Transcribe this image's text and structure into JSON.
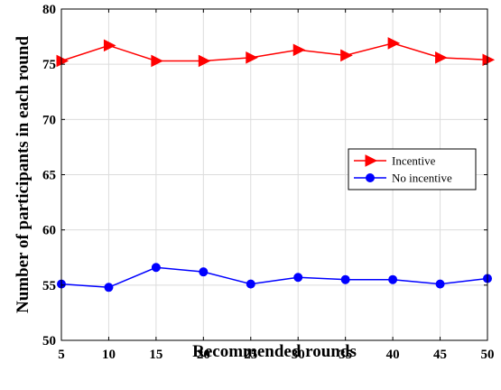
{
  "chart_data": {
    "type": "line",
    "xlabel": "Recommended rounds",
    "ylabel": "Number of participants in each round",
    "x": [
      5,
      10,
      15,
      20,
      25,
      30,
      35,
      40,
      45,
      50
    ],
    "xlim": [
      5,
      50
    ],
    "ylim": [
      50,
      80
    ],
    "xticks": [
      "5",
      "10",
      "15",
      "20",
      "25",
      "30",
      "35",
      "40",
      "45",
      "50"
    ],
    "yticks": [
      "50",
      "55",
      "60",
      "65",
      "70",
      "75",
      "80"
    ],
    "grid": true,
    "legend_position": "right",
    "series": [
      {
        "name": "Incentive",
        "color": "#ff0000",
        "marker": "triangle-right",
        "values": [
          75.3,
          76.7,
          75.3,
          75.3,
          75.6,
          76.3,
          75.8,
          76.9,
          75.6,
          75.4
        ]
      },
      {
        "name": "No incentive",
        "color": "#0000ff",
        "marker": "circle",
        "values": [
          55.1,
          54.8,
          56.6,
          56.2,
          55.1,
          55.7,
          55.5,
          55.5,
          55.1,
          55.6
        ]
      }
    ]
  }
}
